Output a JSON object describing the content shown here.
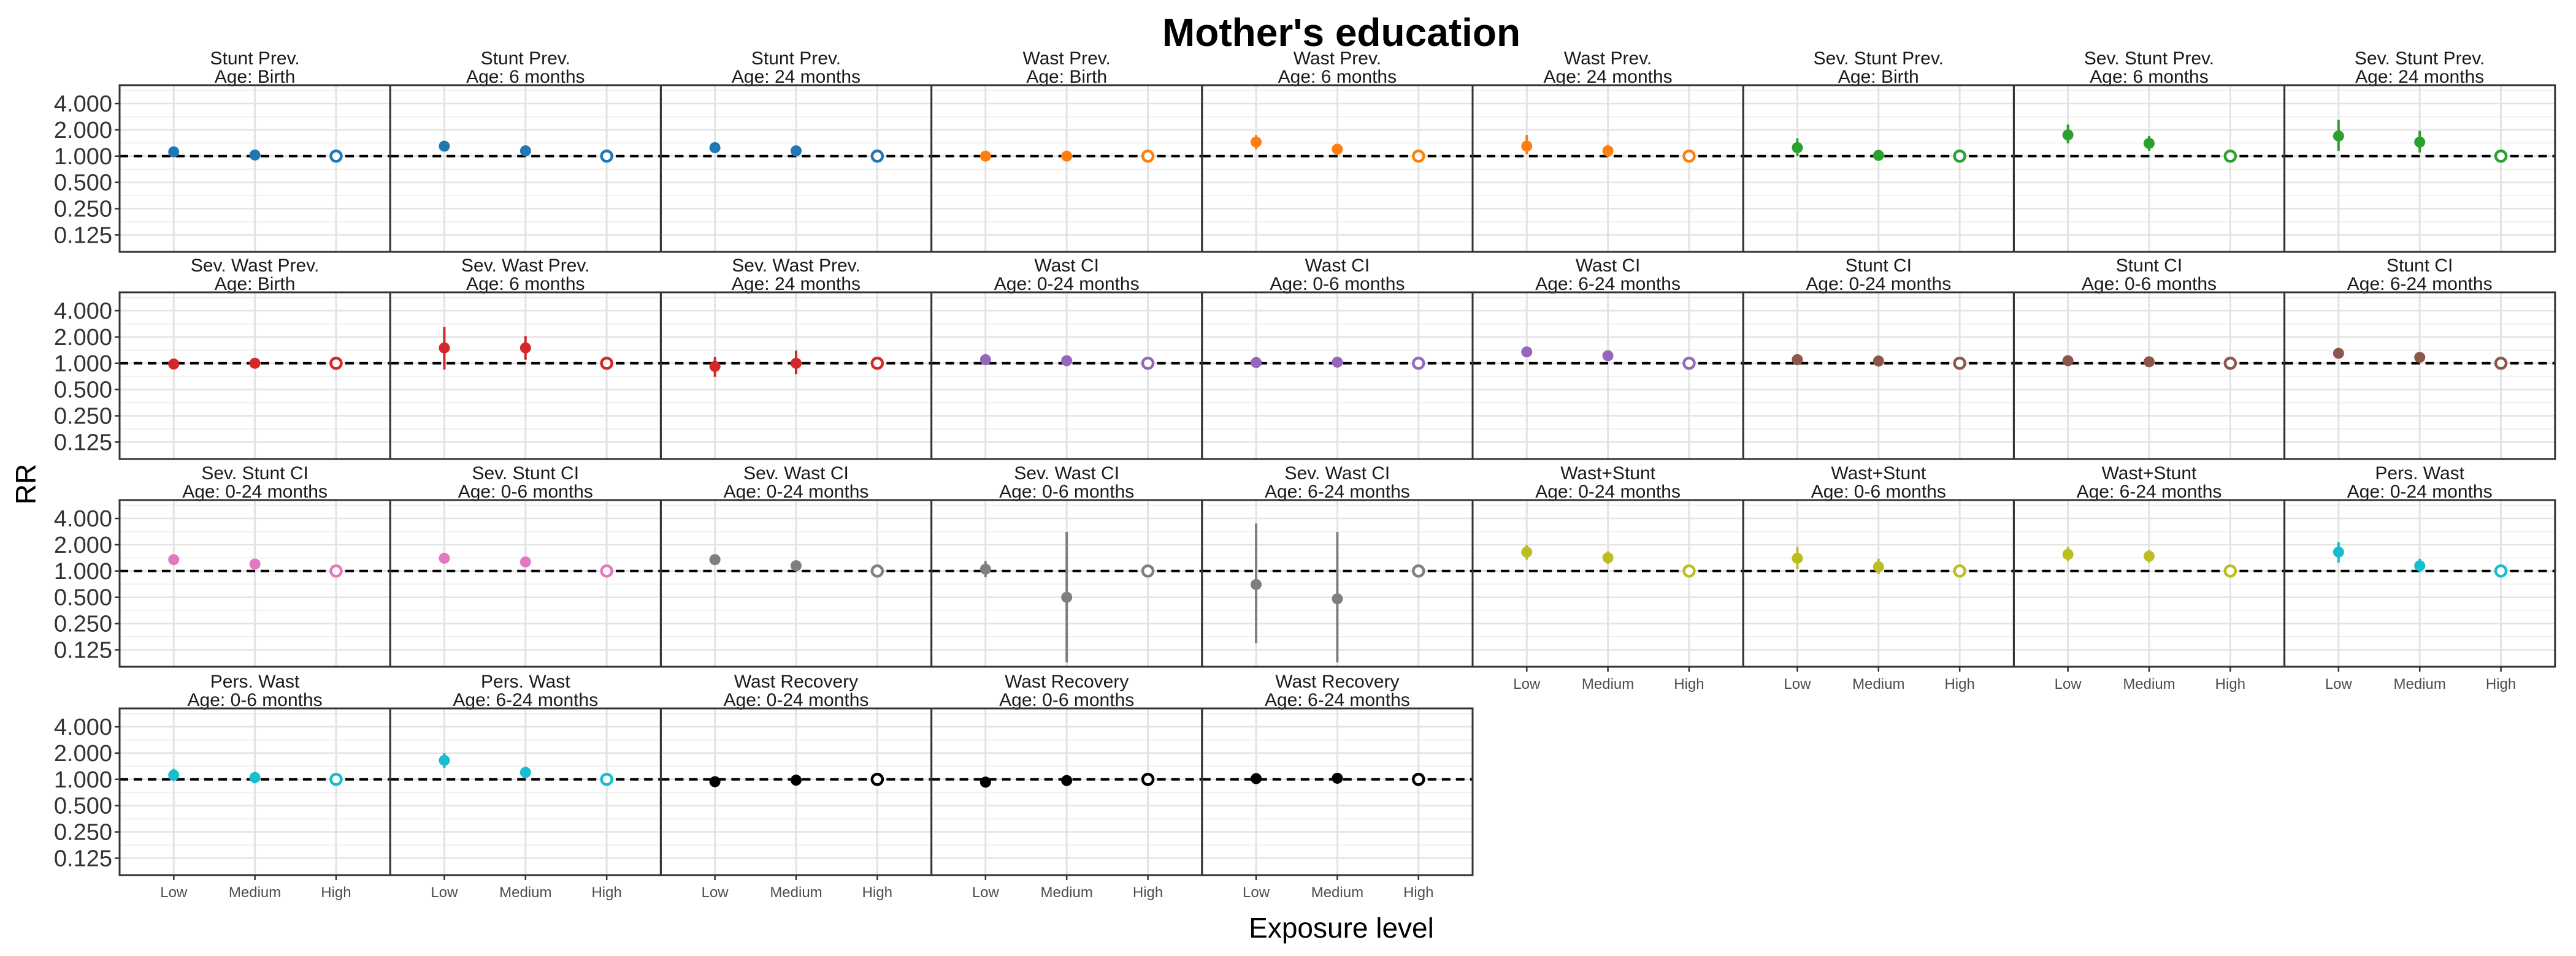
{
  "chart_data": {
    "type": "scatter",
    "title": "Mother's education",
    "xlabel": "Exposure level",
    "ylabel": "RR",
    "categories": [
      "Low",
      "Medium",
      "High"
    ],
    "y_scale": "log2",
    "ylim": [
      0.08,
      6.5
    ],
    "y_ticks": [
      0.125,
      0.25,
      0.5,
      1,
      2,
      4
    ],
    "y_tick_labels": [
      "0.125",
      "0.250",
      "0.500",
      "1.000",
      "2.000",
      "4.000"
    ],
    "reference_line": 1,
    "grid": true,
    "legend": "none",
    "reference_category_marker": "open circle",
    "panels": [
      {
        "title": "Stunt Prev.",
        "subtitle": "Age: Birth",
        "color": "#1f77b4",
        "points": [
          {
            "x": "Low",
            "y": 1.12,
            "lo": 1.03,
            "hi": 1.22
          },
          {
            "x": "Medium",
            "y": 1.03,
            "lo": 0.97,
            "hi": 1.09
          },
          {
            "x": "High",
            "y": 1.0
          }
        ]
      },
      {
        "title": "Stunt Prev.",
        "subtitle": "Age: 6 months",
        "color": "#1f77b4",
        "points": [
          {
            "x": "Low",
            "y": 1.3,
            "lo": 1.2,
            "hi": 1.4
          },
          {
            "x": "Medium",
            "y": 1.15,
            "lo": 1.07,
            "hi": 1.23
          },
          {
            "x": "High",
            "y": 1.0
          }
        ]
      },
      {
        "title": "Stunt Prev.",
        "subtitle": "Age: 24 months",
        "color": "#1f77b4",
        "points": [
          {
            "x": "Low",
            "y": 1.25,
            "lo": 1.17,
            "hi": 1.33
          },
          {
            "x": "Medium",
            "y": 1.15,
            "lo": 1.08,
            "hi": 1.22
          },
          {
            "x": "High",
            "y": 1.0
          }
        ]
      },
      {
        "title": "Wast Prev.",
        "subtitle": "Age: Birth",
        "color": "#ff7f0e",
        "points": [
          {
            "x": "Low",
            "y": 1.0,
            "lo": 0.92,
            "hi": 1.09
          },
          {
            "x": "Medium",
            "y": 1.0,
            "lo": 0.93,
            "hi": 1.07
          },
          {
            "x": "High",
            "y": 1.0
          }
        ]
      },
      {
        "title": "Wast Prev.",
        "subtitle": "Age: 6 months",
        "color": "#ff7f0e",
        "points": [
          {
            "x": "Low",
            "y": 1.45,
            "lo": 1.2,
            "hi": 1.75
          },
          {
            "x": "Medium",
            "y": 1.2,
            "lo": 1.06,
            "hi": 1.36
          },
          {
            "x": "High",
            "y": 1.0
          }
        ]
      },
      {
        "title": "Wast Prev.",
        "subtitle": "Age: 24 months",
        "color": "#ff7f0e",
        "points": [
          {
            "x": "Low",
            "y": 1.3,
            "lo": 1.05,
            "hi": 1.75
          },
          {
            "x": "Medium",
            "y": 1.15,
            "lo": 0.98,
            "hi": 1.35
          },
          {
            "x": "High",
            "y": 1.0
          }
        ]
      },
      {
        "title": "Sev. Stunt Prev.",
        "subtitle": "Age: Birth",
        "color": "#2ca02c",
        "points": [
          {
            "x": "Low",
            "y": 1.25,
            "lo": 1.0,
            "hi": 1.6
          },
          {
            "x": "Medium",
            "y": 1.02,
            "lo": 0.93,
            "hi": 1.12
          },
          {
            "x": "High",
            "y": 1.0
          }
        ]
      },
      {
        "title": "Sev. Stunt Prev.",
        "subtitle": "Age: 6 months",
        "color": "#2ca02c",
        "points": [
          {
            "x": "Low",
            "y": 1.75,
            "lo": 1.4,
            "hi": 2.3
          },
          {
            "x": "Medium",
            "y": 1.4,
            "lo": 1.15,
            "hi": 1.7
          },
          {
            "x": "High",
            "y": 1.0
          }
        ]
      },
      {
        "title": "Sev. Stunt Prev.",
        "subtitle": "Age: 24 months",
        "color": "#2ca02c",
        "points": [
          {
            "x": "Low",
            "y": 1.7,
            "lo": 1.15,
            "hi": 2.6
          },
          {
            "x": "Medium",
            "y": 1.45,
            "lo": 1.1,
            "hi": 1.95
          },
          {
            "x": "High",
            "y": 1.0
          }
        ]
      },
      {
        "title": "Sev. Wast Prev.",
        "subtitle": "Age: Birth",
        "color": "#d62728",
        "points": [
          {
            "x": "Low",
            "y": 0.98,
            "lo": 0.88,
            "hi": 1.08
          },
          {
            "x": "Medium",
            "y": 1.0,
            "lo": 0.92,
            "hi": 1.09
          },
          {
            "x": "High",
            "y": 1.0
          }
        ]
      },
      {
        "title": "Sev. Wast Prev.",
        "subtitle": "Age: 6 months",
        "color": "#d62728",
        "points": [
          {
            "x": "Low",
            "y": 1.5,
            "lo": 0.85,
            "hi": 2.6
          },
          {
            "x": "Medium",
            "y": 1.5,
            "lo": 1.1,
            "hi": 2.05
          },
          {
            "x": "High",
            "y": 1.0
          }
        ]
      },
      {
        "title": "Sev. Wast Prev.",
        "subtitle": "Age: 24 months",
        "color": "#d62728",
        "points": [
          {
            "x": "Low",
            "y": 0.92,
            "lo": 0.7,
            "hi": 1.18
          },
          {
            "x": "Medium",
            "y": 1.0,
            "lo": 0.75,
            "hi": 1.4
          },
          {
            "x": "High",
            "y": 1.0
          }
        ]
      },
      {
        "title": "Wast CI",
        "subtitle": "Age: 0-24 months",
        "color": "#9467bd",
        "points": [
          {
            "x": "Low",
            "y": 1.1,
            "lo": 1.02,
            "hi": 1.18
          },
          {
            "x": "Medium",
            "y": 1.07,
            "lo": 1.0,
            "hi": 1.14
          },
          {
            "x": "High",
            "y": 1.0
          }
        ]
      },
      {
        "title": "Wast CI",
        "subtitle": "Age: 0-6 months",
        "color": "#9467bd",
        "points": [
          {
            "x": "Low",
            "y": 1.02,
            "lo": 0.95,
            "hi": 1.1
          },
          {
            "x": "Medium",
            "y": 1.03,
            "lo": 0.96,
            "hi": 1.1
          },
          {
            "x": "High",
            "y": 1.0
          }
        ]
      },
      {
        "title": "Wast CI",
        "subtitle": "Age: 6-24 months",
        "color": "#9467bd",
        "points": [
          {
            "x": "Low",
            "y": 1.35,
            "lo": 1.25,
            "hi": 1.46
          },
          {
            "x": "Medium",
            "y": 1.22,
            "lo": 1.13,
            "hi": 1.31
          },
          {
            "x": "High",
            "y": 1.0
          }
        ]
      },
      {
        "title": "Stunt CI",
        "subtitle": "Age: 0-24 months",
        "color": "#8c564b",
        "points": [
          {
            "x": "Low",
            "y": 1.1,
            "lo": 1.03,
            "hi": 1.18
          },
          {
            "x": "Medium",
            "y": 1.06,
            "lo": 1.0,
            "hi": 1.12
          },
          {
            "x": "High",
            "y": 1.0
          }
        ]
      },
      {
        "title": "Stunt CI",
        "subtitle": "Age: 0-6 months",
        "color": "#8c564b",
        "points": [
          {
            "x": "Low",
            "y": 1.07,
            "lo": 1.0,
            "hi": 1.15
          },
          {
            "x": "Medium",
            "y": 1.04,
            "lo": 0.98,
            "hi": 1.1
          },
          {
            "x": "High",
            "y": 1.0
          }
        ]
      },
      {
        "title": "Stunt CI",
        "subtitle": "Age: 6-24 months",
        "color": "#8c564b",
        "points": [
          {
            "x": "Low",
            "y": 1.3,
            "lo": 1.21,
            "hi": 1.4
          },
          {
            "x": "Medium",
            "y": 1.17,
            "lo": 1.09,
            "hi": 1.26
          },
          {
            "x": "High",
            "y": 1.0
          }
        ]
      },
      {
        "title": "Sev. Stunt CI",
        "subtitle": "Age: 0-24 months",
        "color": "#e377c2",
        "points": [
          {
            "x": "Low",
            "y": 1.35,
            "lo": 1.22,
            "hi": 1.5
          },
          {
            "x": "Medium",
            "y": 1.2,
            "lo": 1.09,
            "hi": 1.32
          },
          {
            "x": "High",
            "y": 1.0
          }
        ]
      },
      {
        "title": "Sev. Stunt CI",
        "subtitle": "Age: 0-6 months",
        "color": "#e377c2",
        "points": [
          {
            "x": "Low",
            "y": 1.4,
            "lo": 1.22,
            "hi": 1.62
          },
          {
            "x": "Medium",
            "y": 1.27,
            "lo": 1.12,
            "hi": 1.45
          },
          {
            "x": "High",
            "y": 1.0
          }
        ]
      },
      {
        "title": "Sev. Wast CI",
        "subtitle": "Age: 0-24 months",
        "color": "#7f7f7f",
        "points": [
          {
            "x": "Low",
            "y": 1.35,
            "lo": 1.2,
            "hi": 1.52
          },
          {
            "x": "Medium",
            "y": 1.15,
            "lo": 1.04,
            "hi": 1.28
          },
          {
            "x": "High",
            "y": 1.0
          }
        ]
      },
      {
        "title": "Sev. Wast CI",
        "subtitle": "Age: 0-6 months",
        "color": "#7f7f7f",
        "points": [
          {
            "x": "Low",
            "y": 1.05,
            "lo": 0.85,
            "hi": 1.3
          },
          {
            "x": "Medium",
            "y": 0.5,
            "lo": 0.09,
            "hi": 2.8
          },
          {
            "x": "High",
            "y": 1.0
          }
        ]
      },
      {
        "title": "Sev. Wast CI",
        "subtitle": "Age: 6-24 months",
        "color": "#7f7f7f",
        "points": [
          {
            "x": "Low",
            "y": 0.7,
            "lo": 0.15,
            "hi": 3.5
          },
          {
            "x": "Medium",
            "y": 0.48,
            "lo": 0.09,
            "hi": 2.8
          },
          {
            "x": "High",
            "y": 1.0
          }
        ]
      },
      {
        "title": "Wast+Stunt",
        "subtitle": "Age: 0-24 months",
        "color": "#bcbd22",
        "points": [
          {
            "x": "Low",
            "y": 1.65,
            "lo": 1.35,
            "hi": 2.0
          },
          {
            "x": "Medium",
            "y": 1.42,
            "lo": 1.2,
            "hi": 1.68
          },
          {
            "x": "High",
            "y": 1.0
          }
        ]
      },
      {
        "title": "Wast+Stunt",
        "subtitle": "Age: 0-6 months",
        "color": "#bcbd22",
        "points": [
          {
            "x": "Low",
            "y": 1.4,
            "lo": 1.05,
            "hi": 1.9
          },
          {
            "x": "Medium",
            "y": 1.12,
            "lo": 0.92,
            "hi": 1.38
          },
          {
            "x": "High",
            "y": 1.0
          }
        ]
      },
      {
        "title": "Wast+Stunt",
        "subtitle": "Age: 6-24 months",
        "color": "#bcbd22",
        "points": [
          {
            "x": "Low",
            "y": 1.55,
            "lo": 1.3,
            "hi": 1.88
          },
          {
            "x": "Medium",
            "y": 1.48,
            "lo": 1.25,
            "hi": 1.75
          },
          {
            "x": "High",
            "y": 1.0
          }
        ]
      },
      {
        "title": "Pers. Wast",
        "subtitle": "Age: 0-24 months",
        "color": "#17becf",
        "points": [
          {
            "x": "Low",
            "y": 1.65,
            "lo": 1.25,
            "hi": 2.15
          },
          {
            "x": "Medium",
            "y": 1.15,
            "lo": 0.97,
            "hi": 1.38
          },
          {
            "x": "High",
            "y": 1.0
          }
        ]
      },
      {
        "title": "Pers. Wast",
        "subtitle": "Age: 0-6 months",
        "color": "#17becf",
        "points": [
          {
            "x": "Low",
            "y": 1.12,
            "lo": 0.95,
            "hi": 1.32
          },
          {
            "x": "Medium",
            "y": 1.05,
            "lo": 0.9,
            "hi": 1.22
          },
          {
            "x": "High",
            "y": 1.0
          }
        ]
      },
      {
        "title": "Pers. Wast",
        "subtitle": "Age: 6-24 months",
        "color": "#17becf",
        "points": [
          {
            "x": "Low",
            "y": 1.65,
            "lo": 1.35,
            "hi": 2.0
          },
          {
            "x": "Medium",
            "y": 1.2,
            "lo": 1.03,
            "hi": 1.4
          },
          {
            "x": "High",
            "y": 1.0
          }
        ]
      },
      {
        "title": "Wast Recovery",
        "subtitle": "Age: 0-24 months",
        "color": "#000000",
        "points": [
          {
            "x": "Low",
            "y": 0.94,
            "lo": 0.9,
            "hi": 0.98
          },
          {
            "x": "Medium",
            "y": 0.98,
            "lo": 0.95,
            "hi": 1.01
          },
          {
            "x": "High",
            "y": 1.0
          }
        ]
      },
      {
        "title": "Wast Recovery",
        "subtitle": "Age: 0-6 months",
        "color": "#000000",
        "points": [
          {
            "x": "Low",
            "y": 0.93,
            "lo": 0.89,
            "hi": 0.97
          },
          {
            "x": "Medium",
            "y": 0.97,
            "lo": 0.94,
            "hi": 1.0
          },
          {
            "x": "High",
            "y": 1.0
          }
        ]
      },
      {
        "title": "Wast Recovery",
        "subtitle": "Age: 6-24 months",
        "color": "#000000",
        "points": [
          {
            "x": "Low",
            "y": 1.02,
            "lo": 0.97,
            "hi": 1.07
          },
          {
            "x": "Medium",
            "y": 1.03,
            "lo": 0.99,
            "hi": 1.07
          },
          {
            "x": "High",
            "y": 1.0
          }
        ]
      }
    ]
  }
}
